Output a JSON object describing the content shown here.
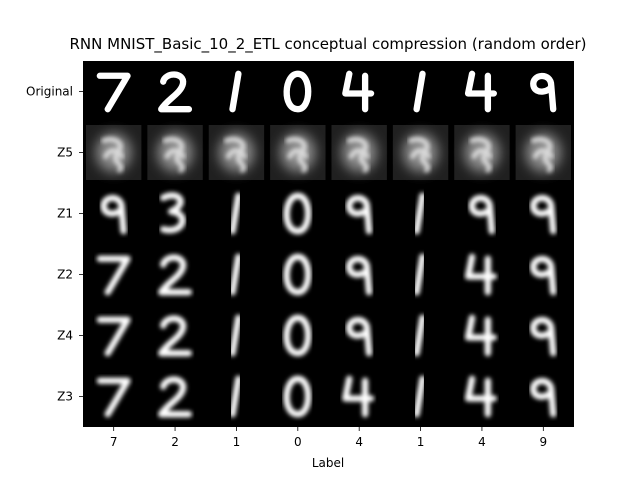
{
  "figure": {
    "title": "RNN MNIST_Basic_10_2_ETL conceptual compression (random order)",
    "xlabel": "Label",
    "rows": [
      "Original",
      "Z5",
      "Z1",
      "Z2",
      "Z4",
      "Z3"
    ],
    "columns": [
      "7",
      "2",
      "1",
      "0",
      "4",
      "1",
      "4",
      "9"
    ],
    "glyphs": [
      [
        "7",
        "2",
        "1",
        "0",
        "4",
        "1",
        "4",
        "9"
      ],
      [
        "",
        "",
        "",
        "",
        "",
        "",
        "",
        ""
      ],
      [
        "9",
        "3",
        "1",
        "0",
        "9",
        "1",
        "9",
        "9"
      ],
      [
        "7",
        "2",
        "1",
        "0",
        "9",
        "1",
        "4",
        "9"
      ],
      [
        "7",
        "2",
        "1",
        "0",
        "9",
        "1",
        "4",
        "9"
      ],
      [
        "7",
        "2",
        "1",
        "0",
        "4",
        "1",
        "4",
        "9"
      ]
    ],
    "colors": {
      "background": "#000000",
      "stroke": "#ffffff",
      "blur_gray": "#8a8a8a"
    }
  }
}
